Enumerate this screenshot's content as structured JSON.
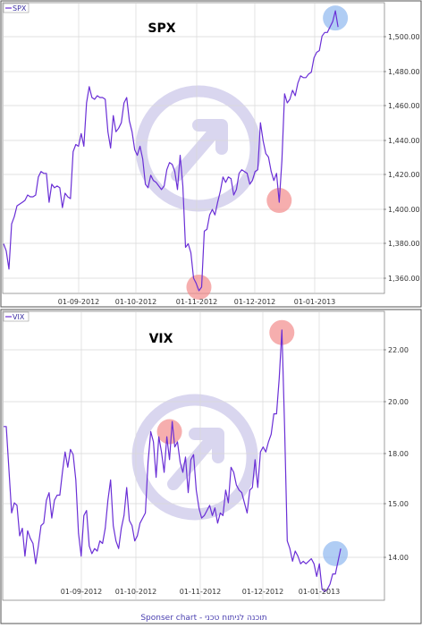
{
  "colors": {
    "line": "#6a2fd6",
    "grid": "#d8d8d8",
    "frame": "#555555",
    "red_marker": "#f28c8c",
    "blue_marker": "#8fb8f0",
    "watermark": "#d9d6ef"
  },
  "footer": "Sponser chart - תוכנה לניתוח טכני",
  "chart_data": [
    {
      "type": "line",
      "title": "SPX",
      "legend": "SPX",
      "x_tick_labels": [
        "01-09-2012",
        "01-10-2012",
        "01-11-2012",
        "01-12-2012",
        "01-01-2013"
      ],
      "y_tick_labels": [
        "1,360.00",
        "1,380.00",
        "1,400.00",
        "1,420.00",
        "1,440.00",
        "1,460.00",
        "1,480.00",
        "1,500.00"
      ],
      "ylim": [
        1352,
        1512
      ],
      "xlim": [
        0,
        142
      ],
      "series": [
        {
          "values": [
            1379,
            1375,
            1365,
            1390,
            1394,
            1400,
            1401,
            1402,
            1403,
            1406,
            1405,
            1405,
            1406,
            1416,
            1419,
            1418,
            1418,
            1402,
            1412,
            1410,
            1411,
            1410,
            1399,
            1407,
            1405,
            1404,
            1430,
            1434,
            1433,
            1440,
            1433,
            1457,
            1466,
            1460,
            1459,
            1461,
            1460,
            1460,
            1459,
            1441,
            1432,
            1450,
            1441,
            1443,
            1446,
            1457,
            1460,
            1447,
            1441,
            1431,
            1428,
            1433,
            1426,
            1412,
            1410,
            1417,
            1414,
            1413,
            1411,
            1409,
            1411,
            1420,
            1424,
            1423,
            1419,
            1409,
            1428,
            1411,
            1377,
            1379,
            1374,
            1360,
            1357,
            1353,
            1355,
            1386,
            1387,
            1395,
            1398,
            1395,
            1402,
            1408,
            1416,
            1413,
            1416,
            1415,
            1406,
            1409,
            1418,
            1420,
            1419,
            1418,
            1412,
            1414,
            1419,
            1420,
            1446,
            1436,
            1429,
            1427,
            1419,
            1414,
            1418,
            1402,
            1425,
            1462,
            1457,
            1459,
            1464,
            1461,
            1468,
            1472,
            1471,
            1471,
            1473,
            1474,
            1482,
            1485,
            1486,
            1494,
            1496,
            1496,
            1499,
            1502,
            1508,
            1499
          ]
        }
      ],
      "markers": [
        {
          "label": "low",
          "x": 73,
          "y": 1355,
          "color": "red"
        },
        {
          "label": "dip",
          "x": 103,
          "y": 1403,
          "color": "red"
        },
        {
          "label": "high",
          "x": 124,
          "y": 1504,
          "color": "blue"
        }
      ]
    },
    {
      "type": "line",
      "title": "VIX",
      "legend": "VIX",
      "x_tick_labels": [
        "01-09-2012",
        "01-10-2012",
        "01-11-2012",
        "01-12-2012",
        "01-01-2013"
      ],
      "y_tick_labels": [
        "14.00",
        "15.00",
        "18.00",
        "20.00",
        "22.00"
      ],
      "ylim": [
        12.1,
        23.4
      ],
      "xlim": [
        0,
        142
      ],
      "series": [
        {
          "values": [
            18.9,
            18.9,
            17.2,
            15.5,
            15.9,
            15.8,
            14.6,
            14.9,
            13.8,
            14.8,
            14.5,
            14.3,
            13.5,
            14.2,
            15.0,
            15.1,
            16.0,
            16.3,
            15.3,
            16.0,
            16.2,
            16.2,
            17.1,
            17.9,
            17.3,
            18.0,
            17.8,
            16.8,
            14.7,
            13.8,
            15.4,
            15.6,
            14.2,
            13.9,
            14.1,
            14.0,
            14.4,
            14.3,
            14.9,
            16.0,
            16.8,
            15.0,
            14.4,
            14.1,
            14.9,
            15.4,
            16.5,
            15.2,
            15.0,
            14.4,
            14.6,
            15.1,
            15.3,
            15.5,
            17.5,
            18.7,
            18.3,
            16.9,
            18.5,
            17.9,
            17.1,
            18.5,
            17.6,
            19.1,
            18.1,
            18.3,
            17.5,
            17.1,
            17.7,
            16.3,
            17.6,
            17.8,
            16.4,
            15.7,
            15.3,
            15.4,
            15.6,
            15.8,
            15.4,
            15.7,
            15.1,
            15.5,
            15.4,
            16.4,
            15.9,
            17.3,
            17.1,
            16.6,
            16.4,
            16.3,
            15.9,
            15.5,
            16.4,
            16.5,
            17.6,
            16.5,
            17.9,
            18.1,
            17.9,
            18.3,
            18.6,
            19.4,
            19.4,
            20.8,
            22.7,
            18.9,
            14.4,
            14.1,
            13.6,
            14.0,
            13.8,
            13.5,
            13.6,
            13.5,
            13.6,
            13.7,
            13.5,
            13.0,
            13.5,
            12.5,
            12.4,
            12.5,
            12.7,
            13.1,
            13.1,
            13.6,
            14.1
          ]
        }
      ],
      "markers": [
        {
          "label": "low",
          "x": 62,
          "y": 18.7,
          "color": "red"
        },
        {
          "label": "spike",
          "x": 104,
          "y": 22.6,
          "color": "red"
        },
        {
          "label": "end",
          "x": 124,
          "y": 13.9,
          "color": "blue"
        }
      ]
    }
  ]
}
